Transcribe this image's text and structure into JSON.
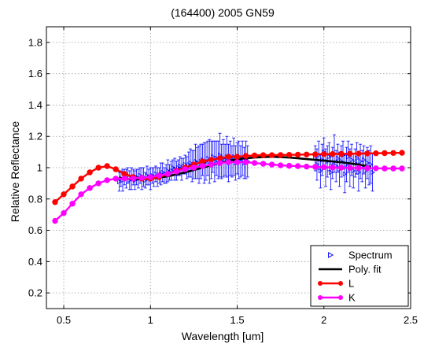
{
  "chart_data": {
    "type": "scatter",
    "title": "(164400) 2005 GN59",
    "xlabel": "Wavelength [um]",
    "ylabel": "Relative Reflectance",
    "xlim": [
      0.4,
      2.5
    ],
    "ylim": [
      0.1,
      1.9
    ],
    "xticks": [
      0.5,
      1,
      1.5,
      2,
      2.5
    ],
    "xtick_labels": [
      "0.5",
      "1",
      "1.5",
      "2",
      "2.5"
    ],
    "yticks": [
      0.2,
      0.4,
      0.6,
      0.8,
      1.0,
      1.2,
      1.4,
      1.6,
      1.8
    ],
    "ytick_labels": [
      "0.2",
      "0.4",
      "0.6",
      "0.8",
      "1",
      "1.2",
      "1.4",
      "1.6",
      "1.8"
    ],
    "grid": true,
    "legend_position": "bottom-right",
    "legend": [
      "Spectrum",
      "Poly. fit",
      "L",
      "K"
    ],
    "series": [
      {
        "name": "Spectrum",
        "style": "markers-with-errorbars",
        "color": "#0000ff",
        "x_start": 0.82,
        "x_step": 0.01,
        "y": [
          0.91,
          0.93,
          0.92,
          0.94,
          0.93,
          0.95,
          0.92,
          0.93,
          0.94,
          0.92,
          0.94,
          0.93,
          0.95,
          0.93,
          0.94,
          0.92,
          0.95,
          0.94,
          0.93,
          0.95,
          0.94,
          0.96,
          0.94,
          0.95,
          0.96,
          0.97,
          0.95,
          0.96,
          0.98,
          0.97,
          0.98,
          1.0,
          0.99,
          0.98,
          1.0,
          1.01,
          0.99,
          1.01,
          1.02,
          1.0,
          1.02,
          1.03,
          1.01,
          1.02,
          1.04,
          1.03,
          1.02,
          1.04,
          1.05,
          1.03,
          1.04,
          1.06,
          1.04,
          1.05,
          1.07,
          1.04,
          1.06,
          1.05,
          1.08,
          1.04,
          1.06,
          1.05,
          1.07,
          1.03,
          1.06,
          1.04,
          1.07,
          1.03,
          1.06,
          1.05,
          1.04,
          1.06,
          1.03,
          1.05,
          1.04
        ],
        "y_err": [
          0.06,
          0.05,
          0.07,
          0.05,
          0.06,
          0.05,
          0.06,
          0.07,
          0.05,
          0.06,
          0.05,
          0.06,
          0.05,
          0.07,
          0.06,
          0.05,
          0.06,
          0.05,
          0.07,
          0.05,
          0.06,
          0.05,
          0.06,
          0.05,
          0.07,
          0.06,
          0.05,
          0.06,
          0.07,
          0.05,
          0.06,
          0.05,
          0.07,
          0.06,
          0.05,
          0.06,
          0.07,
          0.05,
          0.06,
          0.07,
          0.08,
          0.09,
          0.1,
          0.09,
          0.11,
          0.1,
          0.12,
          0.11,
          0.1,
          0.13,
          0.12,
          0.11,
          0.14,
          0.12,
          0.1,
          0.13,
          0.11,
          0.12,
          0.14,
          0.11,
          0.12,
          0.1,
          0.13,
          0.12,
          0.11,
          0.1,
          0.12,
          0.11,
          0.1,
          0.12,
          0.1,
          0.11,
          0.1,
          0.12,
          0.1
        ],
        "x2_start": 1.95,
        "x2_step": 0.01,
        "y2": [
          1.06,
          1.02,
          1.08,
          0.98,
          1.05,
          1.1,
          1.0,
          1.04,
          1.07,
          0.97,
          1.03,
          1.09,
          1.01,
          1.06,
          0.99,
          1.04,
          1.08,
          0.96,
          1.02,
          1.07,
          1.0,
          1.05,
          0.98,
          1.03,
          1.06,
          0.97,
          1.04,
          1.01,
          1.05,
          0.98,
          1.03,
          1.0,
          1.02,
          0.97
        ],
        "y2_err": [
          0.08,
          0.1,
          0.09,
          0.11,
          0.1,
          0.09,
          0.12,
          0.1,
          0.09,
          0.11,
          0.1,
          0.12,
          0.1,
          0.09,
          0.11,
          0.1,
          0.09,
          0.12,
          0.11,
          0.1,
          0.12,
          0.1,
          0.11,
          0.09,
          0.1,
          0.12,
          0.11,
          0.1,
          0.09,
          0.11,
          0.1,
          0.11,
          0.12,
          0.12
        ]
      },
      {
        "name": "Poly. fit",
        "style": "line",
        "color": "#000000",
        "x": [
          0.82,
          0.9,
          1.0,
          1.1,
          1.2,
          1.3,
          1.4,
          1.5,
          1.6,
          1.7,
          1.8,
          1.9,
          2.0,
          2.1,
          2.2,
          2.27
        ],
        "y": [
          0.935,
          0.925,
          0.93,
          0.945,
          0.97,
          1.0,
          1.03,
          1.055,
          1.065,
          1.07,
          1.065,
          1.055,
          1.045,
          1.035,
          1.02,
          1.005
        ]
      },
      {
        "name": "L",
        "style": "line-markers",
        "color": "#ff0000",
        "x": [
          0.45,
          0.5,
          0.55,
          0.6,
          0.65,
          0.7,
          0.75,
          0.8,
          0.85,
          0.9,
          0.95,
          1.0,
          1.05,
          1.1,
          1.15,
          1.2,
          1.25,
          1.3,
          1.35,
          1.4,
          1.45,
          1.5,
          1.55,
          1.6,
          1.65,
          1.7,
          1.75,
          1.8,
          1.85,
          1.9,
          1.95,
          2.0,
          2.05,
          2.1,
          2.15,
          2.2,
          2.25,
          2.3,
          2.35,
          2.4,
          2.45
        ],
        "y": [
          0.78,
          0.83,
          0.88,
          0.93,
          0.97,
          1.0,
          1.01,
          0.99,
          0.96,
          0.94,
          0.93,
          0.93,
          0.94,
          0.96,
          0.98,
          1.0,
          1.02,
          1.04,
          1.05,
          1.06,
          1.07,
          1.07,
          1.075,
          1.078,
          1.08,
          1.08,
          1.081,
          1.082,
          1.083,
          1.084,
          1.085,
          1.086,
          1.087,
          1.088,
          1.089,
          1.09,
          1.091,
          1.092,
          1.093,
          1.094,
          1.095
        ]
      },
      {
        "name": "K",
        "style": "line-markers",
        "color": "#ff00ff",
        "x": [
          0.45,
          0.5,
          0.55,
          0.6,
          0.65,
          0.7,
          0.75,
          0.8,
          0.85,
          0.9,
          0.95,
          1.0,
          1.05,
          1.1,
          1.15,
          1.2,
          1.25,
          1.3,
          1.35,
          1.4,
          1.45,
          1.5,
          1.55,
          1.6,
          1.65,
          1.7,
          1.75,
          1.8,
          1.85,
          1.9,
          1.95,
          2.0,
          2.05,
          2.1,
          2.15,
          2.2,
          2.25,
          2.3,
          2.35,
          2.4,
          2.45
        ],
        "y": [
          0.66,
          0.71,
          0.77,
          0.83,
          0.87,
          0.9,
          0.92,
          0.93,
          0.93,
          0.93,
          0.935,
          0.94,
          0.95,
          0.96,
          0.975,
          0.99,
          1.0,
          1.01,
          1.02,
          1.03,
          1.035,
          1.035,
          1.035,
          1.03,
          1.025,
          1.02,
          1.015,
          1.012,
          1.01,
          1.007,
          1.005,
          1.003,
          1.001,
          1.0,
          0.999,
          0.998,
          0.997,
          0.996,
          0.995,
          0.995,
          0.995
        ]
      }
    ]
  }
}
